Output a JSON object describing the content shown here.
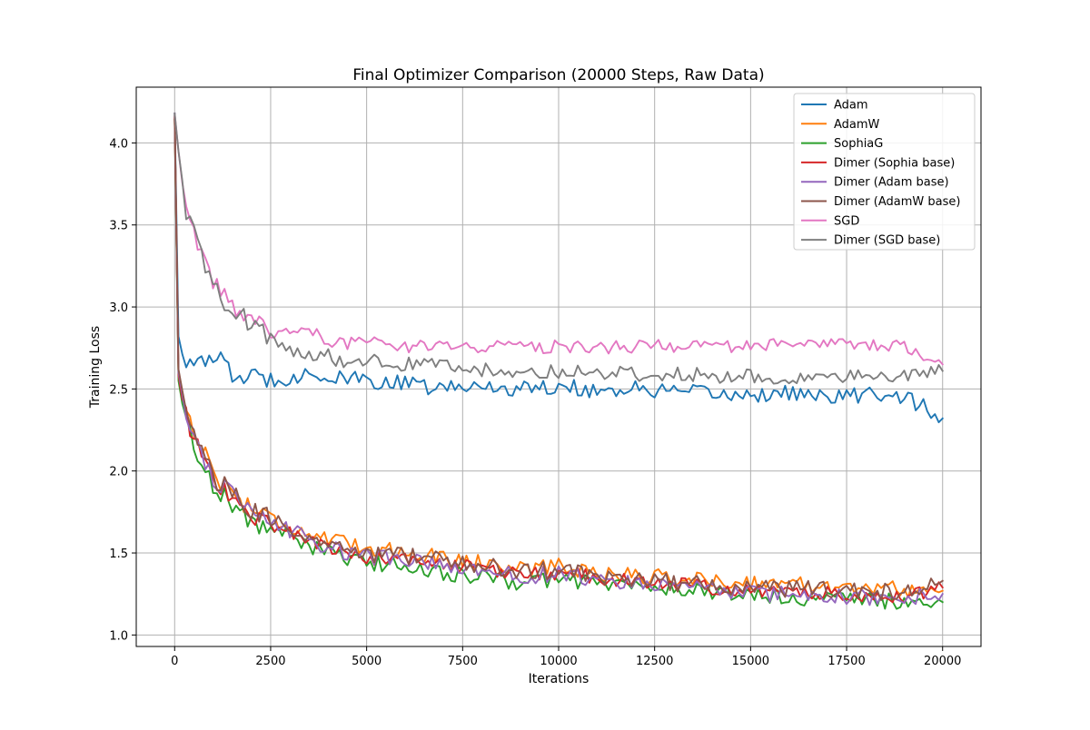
{
  "chart_data": {
    "type": "line",
    "title": "Final Optimizer Comparison (20000 Steps, Raw Data)",
    "xlabel": "Iterations",
    "ylabel": "Training Loss",
    "xlim": [
      -1000,
      21000
    ],
    "ylim": [
      0.93,
      4.34
    ],
    "xticks": [
      0,
      2500,
      5000,
      7500,
      10000,
      12500,
      15000,
      17500,
      20000
    ],
    "xtick_labels": [
      "0",
      "2500",
      "5000",
      "7500",
      "10000",
      "12500",
      "15000",
      "17500",
      "20000"
    ],
    "yticks": [
      1.0,
      1.5,
      2.0,
      2.5,
      3.0,
      3.5,
      4.0
    ],
    "ytick_labels": [
      "1.0",
      "1.5",
      "2.0",
      "2.5",
      "3.0",
      "3.5",
      "4.0"
    ],
    "grid": true,
    "legend_position": "top-right",
    "x": [
      0,
      50,
      100,
      200,
      300,
      500,
      750,
      1000,
      1500,
      2000,
      2500,
      3000,
      3500,
      4000,
      4500,
      5000,
      6000,
      7000,
      8000,
      9000,
      10000,
      11000,
      12000,
      13000,
      14000,
      15000,
      16000,
      17000,
      18000,
      19000,
      20000
    ],
    "series": [
      {
        "name": "Adam",
        "color": "#1f77b4",
        "values": [
          4.18,
          3.2,
          2.82,
          2.72,
          2.68,
          2.7,
          2.62,
          2.72,
          2.58,
          2.57,
          2.56,
          2.57,
          2.6,
          2.56,
          2.56,
          2.55,
          2.53,
          2.5,
          2.52,
          2.5,
          2.52,
          2.49,
          2.5,
          2.48,
          2.47,
          2.46,
          2.48,
          2.44,
          2.47,
          2.46,
          2.32
        ]
      },
      {
        "name": "AdamW",
        "color": "#ff7f0e",
        "values": [
          4.16,
          3.0,
          2.6,
          2.45,
          2.38,
          2.25,
          2.12,
          2.0,
          1.86,
          1.78,
          1.72,
          1.66,
          1.62,
          1.58,
          1.55,
          1.53,
          1.51,
          1.47,
          1.44,
          1.41,
          1.42,
          1.38,
          1.36,
          1.35,
          1.33,
          1.32,
          1.31,
          1.3,
          1.29,
          1.28,
          1.27
        ]
      },
      {
        "name": "SophiaG",
        "color": "#2ca02c",
        "values": [
          4.14,
          2.95,
          2.55,
          2.4,
          2.3,
          2.15,
          2.05,
          1.92,
          1.8,
          1.68,
          1.65,
          1.6,
          1.55,
          1.5,
          1.46,
          1.44,
          1.42,
          1.38,
          1.35,
          1.32,
          1.34,
          1.32,
          1.3,
          1.28,
          1.26,
          1.24,
          1.23,
          1.22,
          1.21,
          1.2,
          1.2
        ]
      },
      {
        "name": "Dimer (Sophia base)",
        "color": "#d62728",
        "values": [
          4.15,
          3.0,
          2.58,
          2.42,
          2.33,
          2.2,
          2.08,
          1.95,
          1.83,
          1.72,
          1.68,
          1.63,
          1.58,
          1.53,
          1.49,
          1.47,
          1.46,
          1.43,
          1.4,
          1.37,
          1.38,
          1.35,
          1.33,
          1.31,
          1.29,
          1.27,
          1.26,
          1.25,
          1.24,
          1.24,
          1.29
        ]
      },
      {
        "name": "Dimer (Adam base)",
        "color": "#9467bd",
        "values": [
          4.16,
          3.02,
          2.6,
          2.44,
          2.35,
          2.21,
          2.1,
          1.96,
          1.84,
          1.73,
          1.69,
          1.64,
          1.58,
          1.53,
          1.5,
          1.48,
          1.46,
          1.42,
          1.39,
          1.36,
          1.37,
          1.34,
          1.32,
          1.3,
          1.27,
          1.25,
          1.25,
          1.24,
          1.23,
          1.22,
          1.25
        ]
      },
      {
        "name": "Dimer (AdamW base)",
        "color": "#8c564b",
        "values": [
          4.17,
          3.02,
          2.62,
          2.45,
          2.36,
          2.22,
          2.12,
          1.97,
          1.85,
          1.74,
          1.7,
          1.66,
          1.6,
          1.55,
          1.52,
          1.5,
          1.48,
          1.45,
          1.42,
          1.39,
          1.39,
          1.36,
          1.34,
          1.32,
          1.3,
          1.28,
          1.28,
          1.27,
          1.26,
          1.26,
          1.33
        ]
      },
      {
        "name": "SGD",
        "color": "#e377c2",
        "values": [
          4.18,
          4.05,
          3.95,
          3.72,
          3.58,
          3.45,
          3.3,
          3.15,
          3.0,
          2.92,
          2.85,
          2.84,
          2.86,
          2.8,
          2.78,
          2.78,
          2.76,
          2.76,
          2.76,
          2.75,
          2.76,
          2.75,
          2.76,
          2.76,
          2.75,
          2.76,
          2.77,
          2.77,
          2.77,
          2.77,
          2.65
        ]
      },
      {
        "name": "Dimer (SGD base)",
        "color": "#7f7f7f",
        "values": [
          4.18,
          4.05,
          3.95,
          3.72,
          3.58,
          3.44,
          3.28,
          3.12,
          2.98,
          2.9,
          2.8,
          2.74,
          2.72,
          2.7,
          2.66,
          2.67,
          2.65,
          2.64,
          2.62,
          2.61,
          2.61,
          2.6,
          2.59,
          2.59,
          2.58,
          2.58,
          2.57,
          2.57,
          2.57,
          2.57,
          2.61
        ]
      }
    ]
  }
}
